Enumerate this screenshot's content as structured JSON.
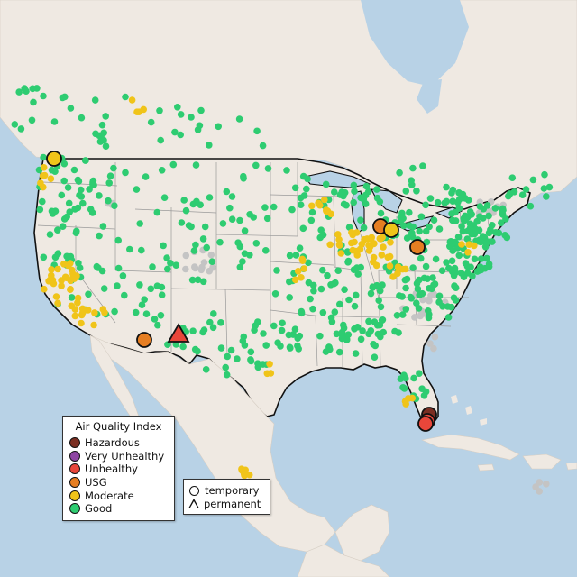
{
  "legend": {
    "title": "Air Quality Index",
    "categories": [
      {
        "label": "Hazardous",
        "color": "#7a2e22"
      },
      {
        "label": "Very Unhealthy",
        "color": "#8e45a3"
      },
      {
        "label": "Unhealthy",
        "color": "#e8463a"
      },
      {
        "label": "USG",
        "color": "#e67e22"
      },
      {
        "label": "Moderate",
        "color": "#f0c419"
      },
      {
        "label": "Good",
        "color": "#2ecc71"
      }
    ]
  },
  "type_legend": {
    "temporary": "temporary",
    "permanent": "permanent"
  },
  "colors": {
    "water": "#b8d2e6",
    "land": "#efe9e2",
    "no_data": "#c4c4c4"
  },
  "large_monitors": [
    {
      "name": "washington",
      "category": "Moderate",
      "shape": "circle"
    },
    {
      "name": "chicago-1",
      "category": "USG",
      "shape": "circle"
    },
    {
      "name": "chicago-2",
      "category": "Moderate",
      "shape": "circle"
    },
    {
      "name": "ohio",
      "category": "USG",
      "shape": "circle"
    },
    {
      "name": "arizona",
      "category": "USG",
      "shape": "circle"
    },
    {
      "name": "new-mexico",
      "category": "Unhealthy",
      "shape": "triangle"
    },
    {
      "name": "florida-1",
      "category": "Hazardous",
      "shape": "circle"
    },
    {
      "name": "florida-2",
      "category": "Unhealthy",
      "shape": "circle"
    },
    {
      "name": "florida-3",
      "category": "Unhealthy",
      "shape": "circle"
    }
  ]
}
